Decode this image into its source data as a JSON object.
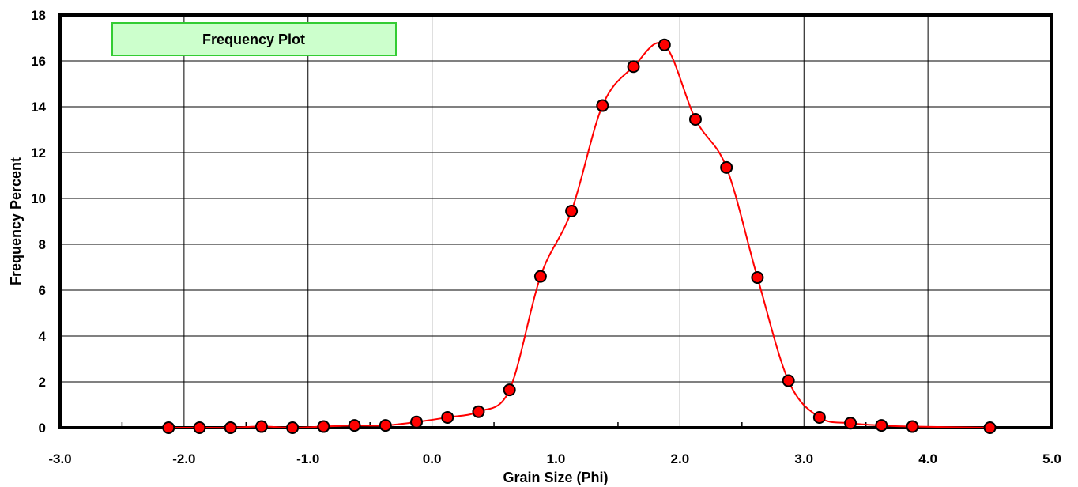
{
  "chart_data": {
    "type": "line",
    "title": "Frequency Plot",
    "xlabel": "Grain Size (Phi)",
    "ylabel": "Frequency Percent",
    "xlim": [
      -3.0,
      5.0
    ],
    "ylim": [
      0,
      18
    ],
    "x_ticks": [
      "-3.0",
      "-2.0",
      "-1.0",
      "0.0",
      "1.0",
      "2.0",
      "3.0",
      "4.0",
      "5.0"
    ],
    "y_ticks": [
      "0",
      "2",
      "4",
      "6",
      "8",
      "10",
      "12",
      "14",
      "16",
      "18"
    ],
    "grid": true,
    "series": [
      {
        "x": [
          -2.125,
          -1.875,
          -1.625,
          -1.375,
          -1.125,
          -0.875,
          -0.625,
          -0.375,
          -0.125,
          0.125,
          0.375,
          0.625,
          0.875,
          1.125,
          1.375,
          1.625,
          1.875,
          2.125,
          2.375,
          2.625,
          2.875,
          3.125,
          3.375,
          3.625,
          3.875,
          4.5
        ],
        "y": [
          0.0,
          0.0,
          0.0,
          0.05,
          0.0,
          0.05,
          0.1,
          0.1,
          0.25,
          0.45,
          0.7,
          1.65,
          6.6,
          9.45,
          14.05,
          15.75,
          16.7,
          13.45,
          11.35,
          6.55,
          2.05,
          0.45,
          0.2,
          0.1,
          0.05,
          0.0
        ],
        "line_color": "#ff0000",
        "marker_color": "#ff0000"
      }
    ],
    "colors": {
      "title_box_fill": "#ccffcc",
      "title_box_border": "#33cc33"
    }
  }
}
